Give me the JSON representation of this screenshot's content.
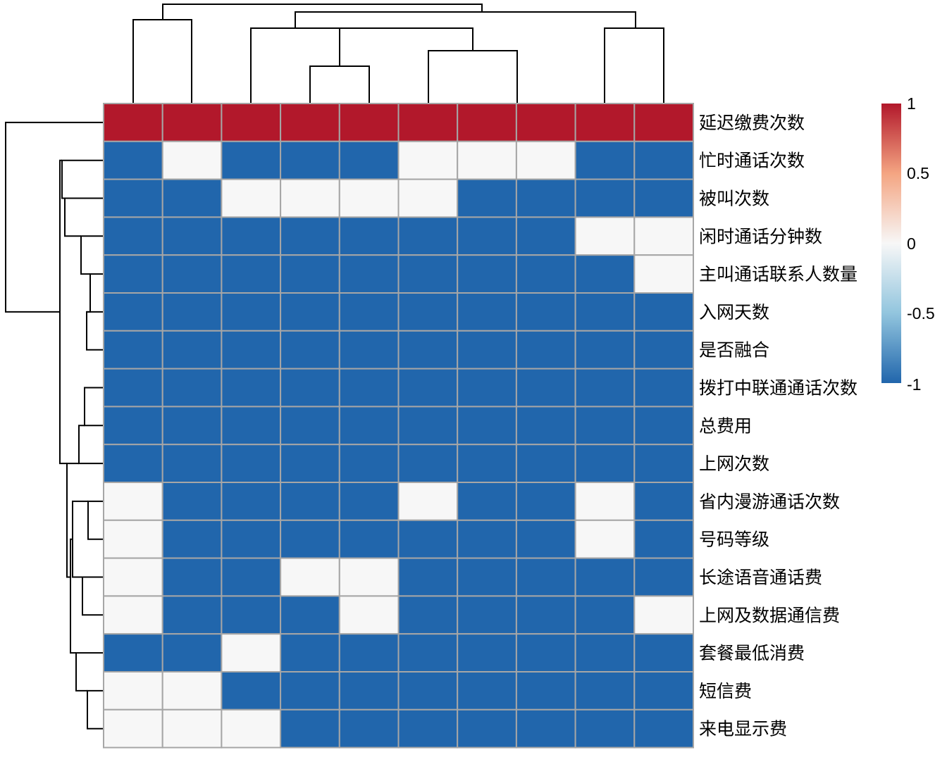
{
  "chart_data": {
    "type": "heatmap",
    "title": "",
    "xlabel": "",
    "ylabel": "",
    "n_columns": 10,
    "rows": [
      "延迟缴费次数",
      "忙时通话次数",
      "被叫次数",
      "闲时通话分钟数",
      "主叫通话联系人数量",
      "入网天数",
      "是否融合",
      "拨打中联通通话次数",
      "总费用",
      "上网次数",
      "省内漫游通话次数",
      "号码等级",
      "长途语音通话费",
      "上网及数据通信费",
      "套餐最低消费",
      "短信费",
      "来电显示费"
    ],
    "values": [
      [
        1,
        1,
        1,
        1,
        1,
        1,
        1,
        1,
        1,
        1
      ],
      [
        -1,
        0,
        -1,
        -1,
        -1,
        0,
        0,
        0,
        -1,
        -1
      ],
      [
        -1,
        -1,
        0,
        0,
        0,
        0,
        -1,
        -1,
        -1,
        -1
      ],
      [
        -1,
        -1,
        -1,
        -1,
        -1,
        -1,
        -1,
        -1,
        0,
        0
      ],
      [
        -1,
        -1,
        -1,
        -1,
        -1,
        -1,
        -1,
        -1,
        -1,
        0
      ],
      [
        -1,
        -1,
        -1,
        -1,
        -1,
        -1,
        -1,
        -1,
        -1,
        -1
      ],
      [
        -1,
        -1,
        -1,
        -1,
        -1,
        -1,
        -1,
        -1,
        -1,
        -1
      ],
      [
        -1,
        -1,
        -1,
        -1,
        -1,
        -1,
        -1,
        -1,
        -1,
        -1
      ],
      [
        -1,
        -1,
        -1,
        -1,
        -1,
        -1,
        -1,
        -1,
        -1,
        -1
      ],
      [
        -1,
        -1,
        -1,
        -1,
        -1,
        -1,
        -1,
        -1,
        -1,
        -1
      ],
      [
        0,
        -1,
        -1,
        -1,
        -1,
        0,
        -1,
        -1,
        0,
        -1
      ],
      [
        0,
        -1,
        -1,
        -1,
        -1,
        -1,
        -1,
        -1,
        0,
        -1
      ],
      [
        0,
        -1,
        -1,
        0,
        0,
        -1,
        -1,
        -1,
        -1,
        -1
      ],
      [
        0,
        -1,
        -1,
        -1,
        0,
        -1,
        -1,
        -1,
        -1,
        0
      ],
      [
        -1,
        -1,
        0,
        -1,
        -1,
        -1,
        -1,
        -1,
        -1,
        -1
      ],
      [
        0,
        0,
        -1,
        -1,
        -1,
        -1,
        -1,
        -1,
        -1,
        -1
      ],
      [
        0,
        0,
        0,
        -1,
        -1,
        -1,
        -1,
        -1,
        -1,
        -1
      ]
    ],
    "color_scale": {
      "ticks": [
        "1",
        "0.5",
        "0",
        "-0.5",
        "-1"
      ],
      "low_color": "#2166ac",
      "mid_color": "#f7f7f7",
      "high_color": "#b2182b"
    },
    "legend_position": "right",
    "column_dendrogram": "top",
    "row_dendrogram": "left",
    "grid": true
  }
}
